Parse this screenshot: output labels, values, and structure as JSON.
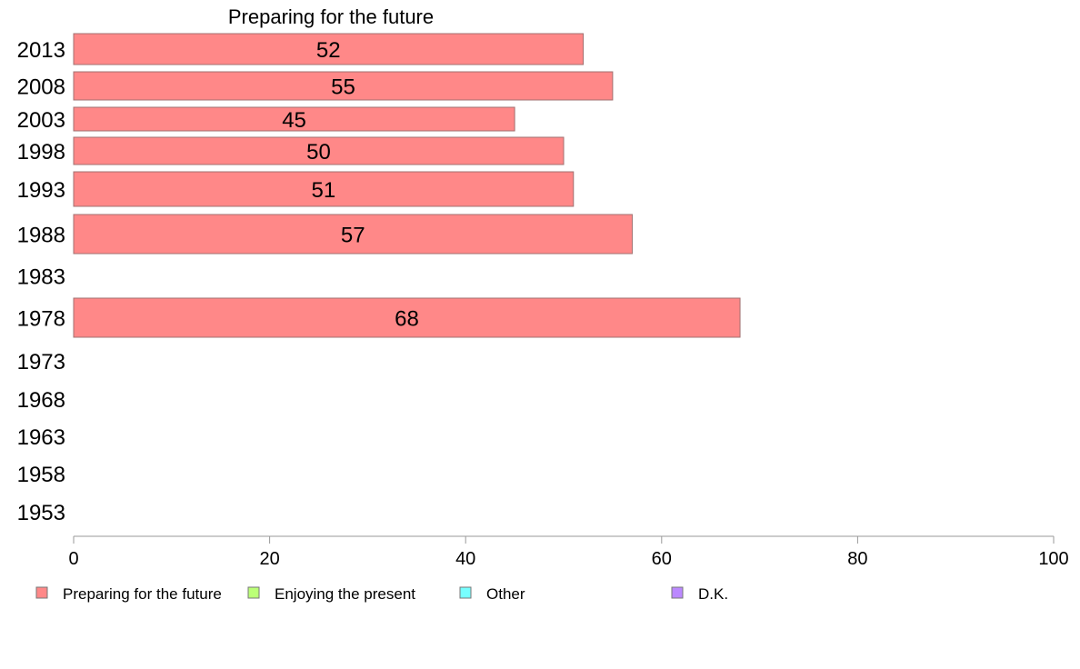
{
  "chart_data": {
    "type": "bar",
    "orientation": "horizontal",
    "title": "Preparing for the future",
    "categories": [
      "2013",
      "2008",
      "2003",
      "1998",
      "1993",
      "1988",
      "1983",
      "1978",
      "1973",
      "1968",
      "1963",
      "1958",
      "1953"
    ],
    "series": [
      {
        "name": "Preparing for the future",
        "color": "#ff8888",
        "values": [
          52,
          55,
          45,
          50,
          51,
          57,
          null,
          68,
          null,
          null,
          null,
          null,
          null
        ]
      }
    ],
    "xlim": [
      0,
      100
    ],
    "xticks": [
      "0",
      "20",
      "40",
      "60",
      "80",
      "100"
    ],
    "legend_position": "bottom",
    "legend": [
      {
        "label": "Preparing for the future",
        "color": "#ff8888"
      },
      {
        "label": "Enjoying the present",
        "color": "#bbff77"
      },
      {
        "label": "Other",
        "color": "#77ffff"
      },
      {
        "label": "D.K.",
        "color": "#bb88ff"
      }
    ],
    "grid": false
  }
}
